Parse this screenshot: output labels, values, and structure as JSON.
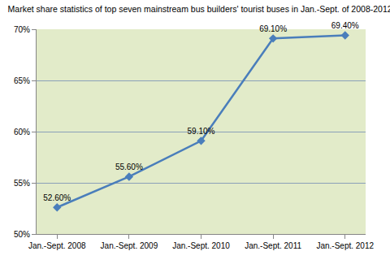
{
  "chart_data": {
    "type": "line",
    "title": "Market share statistics of top seven mainstream bus builders' tourist buses in Jan.-Sept. of 2008-2012",
    "categories": [
      "Jan.-Sept. 2008",
      "Jan.-Sept. 2009",
      "Jan.-Sept. 2010",
      "Jan.-Sept. 2011",
      "Jan.-Sept. 2012"
    ],
    "values": [
      52.6,
      55.6,
      59.1,
      69.1,
      69.4
    ],
    "value_labels": [
      "52.60%",
      "55.60%",
      "59.10%",
      "69.10%",
      "69.40%"
    ],
    "color": "#4a7ebb",
    "marker": "diamond",
    "data_labels": true,
    "ylim": [
      50,
      70
    ],
    "yticks": [
      {
        "value": 50,
        "label": "50%"
      },
      {
        "value": 55,
        "label": "55%"
      },
      {
        "value": 60,
        "label": "60%"
      },
      {
        "value": 65,
        "label": "65%"
      },
      {
        "value": 70,
        "label": "70%"
      }
    ],
    "grid": true
  }
}
